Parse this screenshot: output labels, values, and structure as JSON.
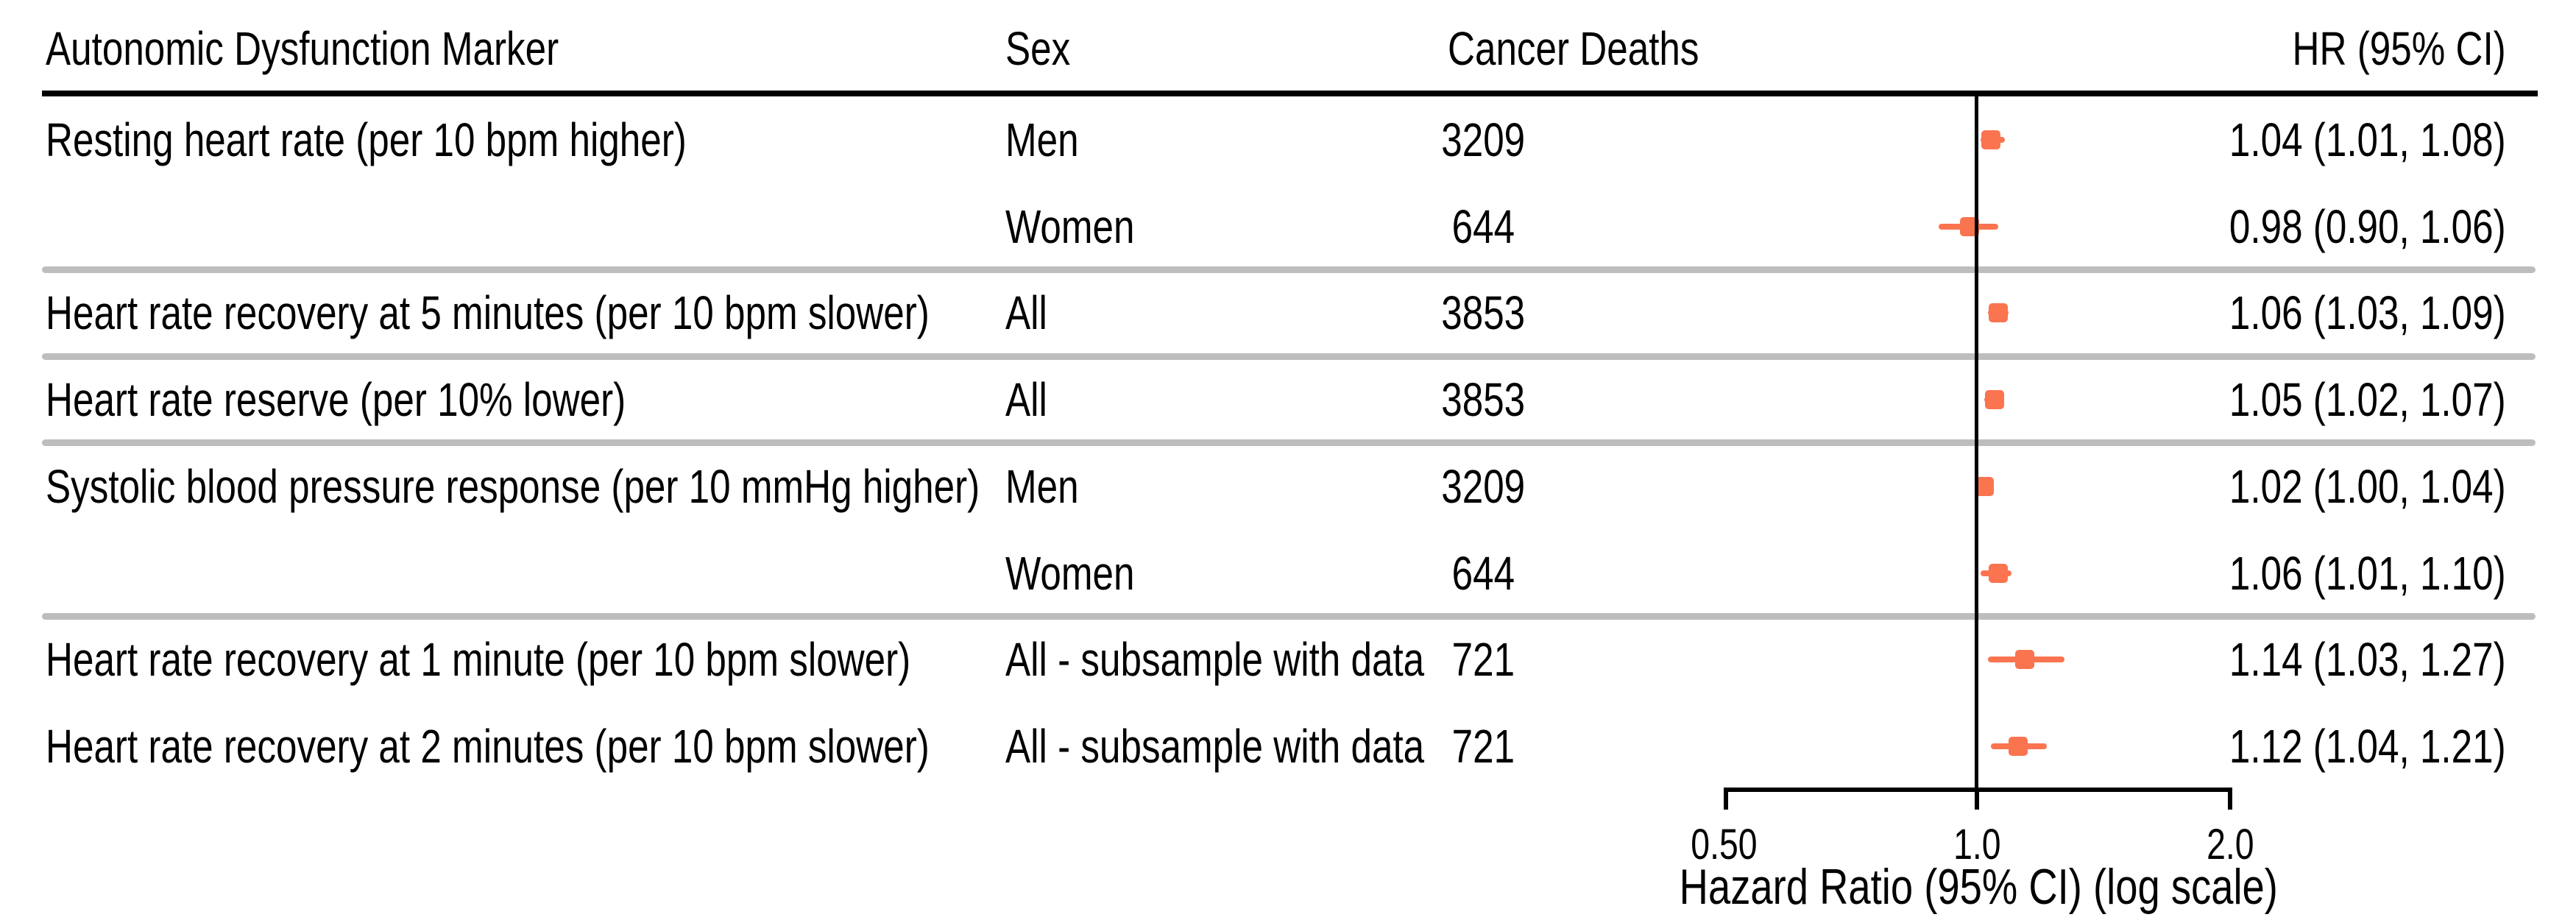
{
  "header": {
    "marker": "Autonomic Dysfunction Marker",
    "sex": "Sex",
    "deaths": "Cancer Deaths",
    "hr": "HR (95% CI)"
  },
  "axis": {
    "ticks": [
      "0.50",
      "1.0",
      "2.0"
    ],
    "label": "Hazard Ratio (95% CI) (log scale)"
  },
  "colors": {
    "marker": "#FA7450",
    "separator": "#BDBDBD",
    "line": "#000000"
  },
  "chart_data": {
    "type": "forest",
    "xlabel": "Hazard Ratio (95% CI) (log scale)",
    "x_scale": "log",
    "x_ticks": [
      0.5,
      1.0,
      2.0
    ],
    "x_tick_labels": [
      "0.50",
      "1.0",
      "2.0"
    ],
    "reference_line": 1.0,
    "columns": [
      "Autonomic Dysfunction Marker",
      "Sex",
      "Cancer Deaths",
      "HR (95% CI)"
    ],
    "rows": [
      {
        "marker": "Resting heart rate (per 10 bpm higher)",
        "sex": "Men",
        "deaths": "3209",
        "hr": 1.04,
        "ci_low": 1.01,
        "ci_high": 1.08,
        "hr_text": "1.04 (1.01, 1.08)",
        "separator_after": false
      },
      {
        "marker": "",
        "sex": "Women",
        "deaths": "644",
        "hr": 0.98,
        "ci_low": 0.9,
        "ci_high": 1.06,
        "hr_text": "0.98 (0.90, 1.06)",
        "separator_after": true
      },
      {
        "marker": "Heart rate recovery at 5 minutes (per 10 bpm slower)",
        "sex": "All",
        "deaths": "3853",
        "hr": 1.06,
        "ci_low": 1.03,
        "ci_high": 1.09,
        "hr_text": "1.06 (1.03, 1.09)",
        "separator_after": true
      },
      {
        "marker": "Heart rate reserve (per 10% lower)",
        "sex": "All",
        "deaths": "3853",
        "hr": 1.05,
        "ci_low": 1.02,
        "ci_high": 1.07,
        "hr_text": "1.05 (1.02, 1.07)",
        "separator_after": true
      },
      {
        "marker": "Systolic blood pressure response (per 10 mmHg higher)",
        "sex": "Men",
        "deaths": "3209",
        "hr": 1.02,
        "ci_low": 1.0,
        "ci_high": 1.04,
        "hr_text": "1.02 (1.00, 1.04)",
        "separator_after": false
      },
      {
        "marker": "",
        "sex": "Women",
        "deaths": "644",
        "hr": 1.06,
        "ci_low": 1.01,
        "ci_high": 1.1,
        "hr_text": "1.06 (1.01, 1.10)",
        "separator_after": true
      },
      {
        "marker": "Heart rate recovery at 1 minute (per 10 bpm slower)",
        "sex": "All - subsample with data",
        "deaths": "721",
        "hr": 1.14,
        "ci_low": 1.03,
        "ci_high": 1.27,
        "hr_text": "1.14 (1.03, 1.27)",
        "separator_after": false
      },
      {
        "marker": "Heart rate recovery at 2 minutes (per 10 bpm slower)",
        "sex": "All - subsample with data",
        "deaths": "721",
        "hr": 1.12,
        "ci_low": 1.04,
        "ci_high": 1.21,
        "hr_text": "1.12 (1.04, 1.21)",
        "separator_after": false
      }
    ]
  }
}
